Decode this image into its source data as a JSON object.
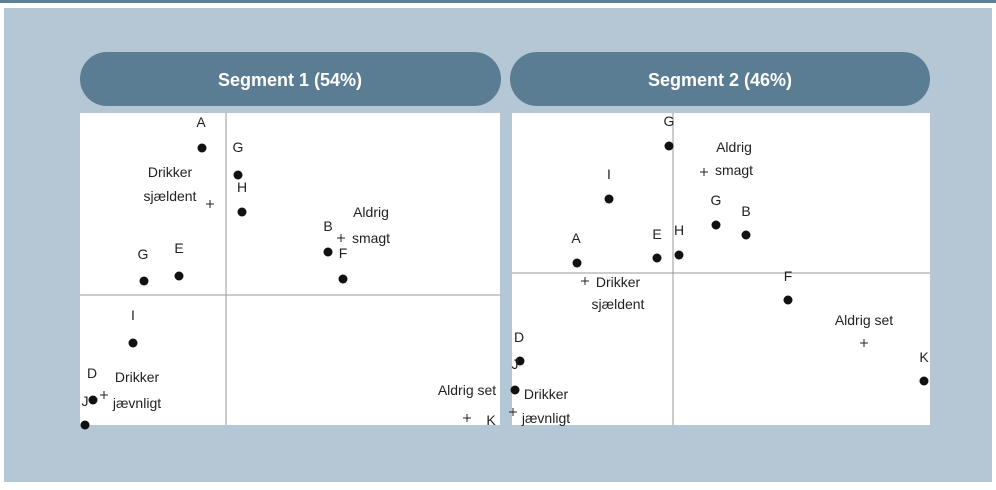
{
  "panels": [
    {
      "title": "Segment 1 (54%)",
      "labels": [
        "A",
        "G",
        "H",
        "B",
        "F",
        "G",
        "E",
        "I",
        "D",
        "J",
        "K"
      ],
      "notes": [
        [
          "Drikker",
          "sjældent"
        ],
        [
          "Aldrig",
          "smagt"
        ],
        [
          "Drikker",
          "jævnligt"
        ],
        [
          "Aldrig set"
        ]
      ]
    },
    {
      "title": "Segment 2 (46%)",
      "labels": [
        "G",
        "I",
        "G",
        "B",
        "A",
        "E",
        "H",
        "F",
        "K",
        "D",
        "J"
      ],
      "notes": [
        [
          "Aldrig",
          "smagt"
        ],
        [
          "Drikker",
          "sjældent"
        ],
        [
          "Aldrig set"
        ],
        [
          "Drikker",
          "jævnligt"
        ]
      ]
    }
  ]
}
